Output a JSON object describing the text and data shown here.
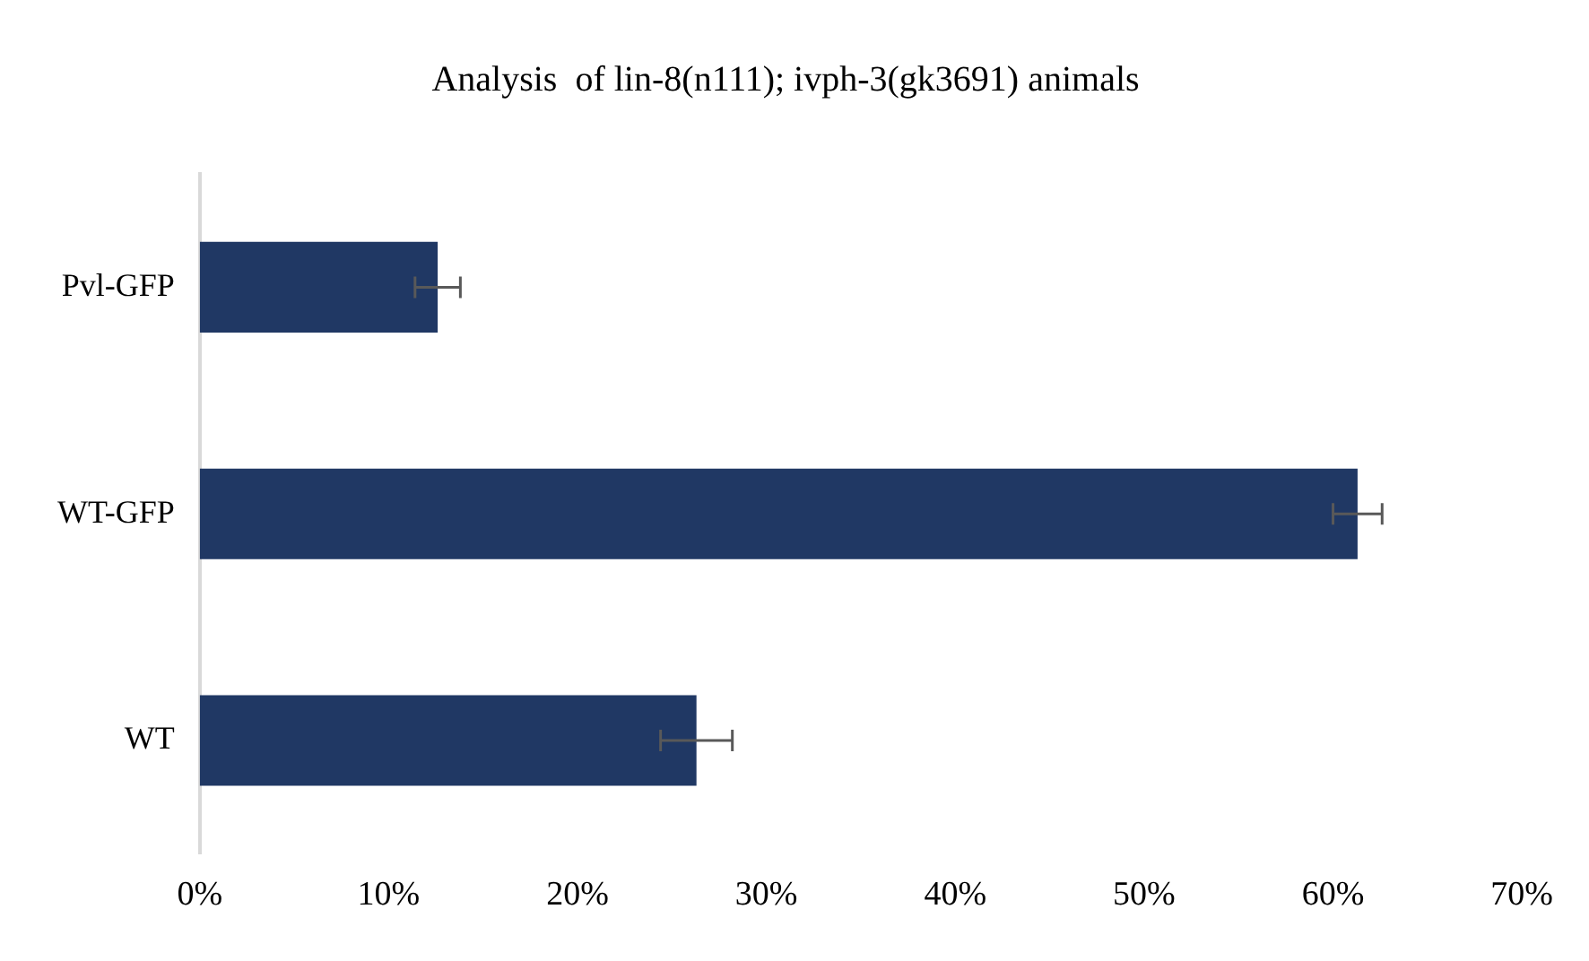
{
  "chart_data": {
    "type": "bar",
    "orientation": "horizontal",
    "title": "Analysis  of lin-8(n111); ivph-3(gk3691) animals",
    "categories": [
      "Pvl-GFP",
      "WT-GFP",
      "WT"
    ],
    "values": [
      12.6,
      61.3,
      26.3
    ],
    "errors": [
      1.2,
      1.3,
      1.9
    ],
    "color": "#203864",
    "xlim": [
      0,
      70
    ],
    "xticks": [
      {
        "value": 0,
        "label": "0%"
      },
      {
        "value": 10,
        "label": "10%"
      },
      {
        "value": 20,
        "label": "20%"
      },
      {
        "value": 30,
        "label": "30%"
      },
      {
        "value": 40,
        "label": "40%"
      },
      {
        "value": 50,
        "label": "50%"
      },
      {
        "value": 60,
        "label": "60%"
      },
      {
        "value": 70,
        "label": "70%"
      }
    ],
    "grid": false,
    "legend": false
  }
}
